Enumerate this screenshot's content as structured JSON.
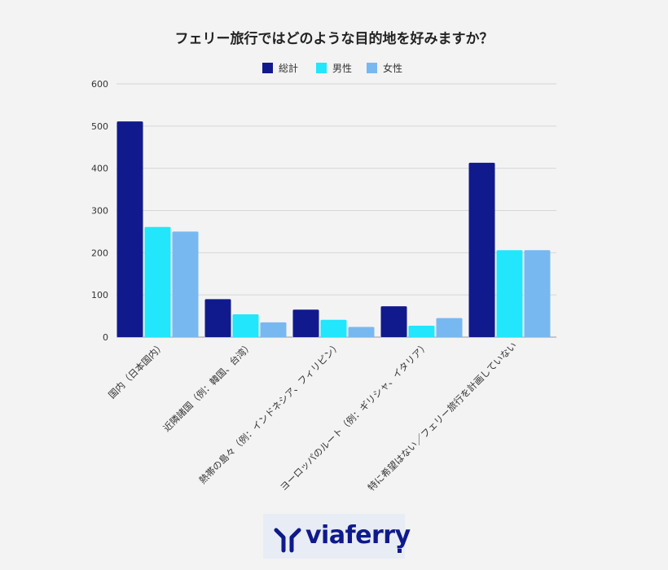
{
  "chart_data": {
    "type": "bar",
    "title": "フェリー旅行ではどのような目的地を好みますか？",
    "categories": [
      "国内（日本国内）",
      "近隣諸国（例：韓国、台湾）",
      "熱帯の島々（例：インドネシア、フィリピン）",
      "ヨーロッパのルート（例：ギリシャ、イタリア）",
      "特に希望はない／フェリー旅行を計画していない"
    ],
    "series": [
      {
        "name": "総計",
        "color": "#111a8c",
        "values": [
          511,
          90,
          65,
          73,
          413
        ]
      },
      {
        "name": "男性",
        "color": "#22e6fb",
        "values": [
          261,
          54,
          41,
          27,
          206
        ]
      },
      {
        "name": "女性",
        "color": "#78b8f0",
        "values": [
          250,
          35,
          24,
          45,
          206
        ]
      }
    ],
    "ylim": [
      0,
      600
    ],
    "yticks": [
      0,
      100,
      200,
      300,
      400,
      500,
      600
    ],
    "grid": true,
    "legend_position": "top"
  },
  "logo": {
    "text": "viaferry"
  }
}
